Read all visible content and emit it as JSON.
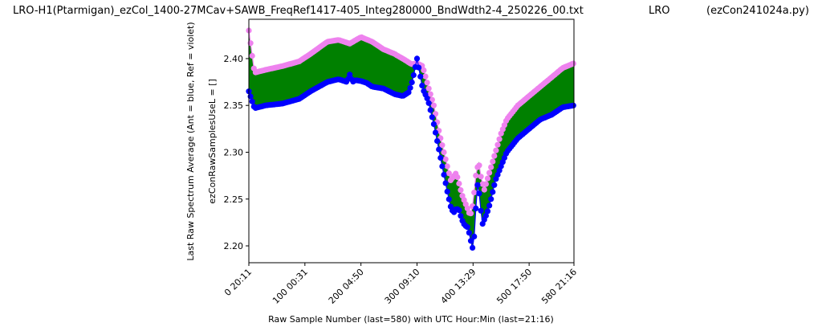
{
  "figure": {
    "title_left": "LRO-H1(Ptarmigan)_ezCol_1400-27MCav+SAWB_FreqRef1417-405_Integ280000_BndWdth2-4_250226_00.txt",
    "title_mid": "LRO",
    "title_right": "(ezCon241024a.py)"
  },
  "chart_data": {
    "type": "scatter",
    "xlabel": "Raw Sample Number (last=580) with UTC Hour:Min (last=21:16)",
    "ylabel_outer": "Last Raw Spectrum Average    (Ant = blue, Ref = violet)",
    "ylabel_inner": "ezConRawSamplesUseL = []",
    "xlim": [
      0,
      580
    ],
    "ylim": [
      2.182,
      2.442
    ],
    "x_ticks": [
      {
        "value": 0,
        "label": "0  20:11"
      },
      {
        "value": 100,
        "label": "100  00:31"
      },
      {
        "value": 200,
        "label": "200  04:50"
      },
      {
        "value": 300,
        "label": "300  09:10"
      },
      {
        "value": 400,
        "label": "400  13:29"
      },
      {
        "value": 500,
        "label": "500  17:50"
      },
      {
        "value": 580,
        "label": "580  21:16"
      }
    ],
    "y_ticks": [
      2.2,
      2.25,
      2.3,
      2.35,
      2.4
    ],
    "y_tick_labels": [
      "2.20",
      "2.25",
      "2.30",
      "2.35",
      "2.40"
    ],
    "grid": false,
    "colors": {
      "ant": "#0000ff",
      "ref": "#ee82ee",
      "fill": "#008000"
    },
    "series": [
      {
        "name": "Ant",
        "color": "#0000ff",
        "x": [
          0,
          10,
          30,
          60,
          90,
          110,
          140,
          160,
          175,
          180,
          185,
          190,
          200,
          210,
          220,
          240,
          260,
          275,
          285,
          290,
          295,
          300,
          310,
          320,
          330,
          340,
          350,
          355,
          360,
          365,
          370,
          375,
          380,
          385,
          390,
          395,
          398,
          400,
          402,
          405,
          408,
          412,
          416,
          420,
          425,
          430,
          440,
          450,
          460,
          480,
          500,
          520,
          540,
          560,
          580
        ],
        "y": [
          2.365,
          2.347,
          2.35,
          2.352,
          2.357,
          2.365,
          2.375,
          2.378,
          2.375,
          2.383,
          2.375,
          2.377,
          2.376,
          2.374,
          2.37,
          2.368,
          2.362,
          2.36,
          2.364,
          2.372,
          2.385,
          2.4,
          2.368,
          2.355,
          2.33,
          2.3,
          2.27,
          2.255,
          2.242,
          2.235,
          2.24,
          2.238,
          2.228,
          2.222,
          2.22,
          2.21,
          2.196,
          2.2,
          2.21,
          2.24,
          2.265,
          2.253,
          2.222,
          2.228,
          2.235,
          2.245,
          2.27,
          2.285,
          2.3,
          2.315,
          2.325,
          2.335,
          2.34,
          2.348,
          2.35
        ]
      },
      {
        "name": "Ref",
        "color": "#ee82ee",
        "x": [
          0,
          10,
          30,
          60,
          90,
          110,
          140,
          160,
          180,
          200,
          220,
          240,
          260,
          280,
          290,
          300,
          310,
          320,
          330,
          340,
          350,
          360,
          370,
          380,
          390,
          395,
          400,
          405,
          410,
          415,
          420,
          430,
          440,
          450,
          460,
          480,
          500,
          520,
          540,
          560,
          580
        ],
        "y": [
          2.43,
          2.385,
          2.388,
          2.392,
          2.397,
          2.405,
          2.418,
          2.42,
          2.416,
          2.423,
          2.418,
          2.41,
          2.405,
          2.398,
          2.394,
          2.395,
          2.392,
          2.37,
          2.35,
          2.32,
          2.295,
          2.27,
          2.278,
          2.255,
          2.24,
          2.232,
          2.245,
          2.275,
          2.29,
          2.27,
          2.26,
          2.28,
          2.3,
          2.32,
          2.335,
          2.35,
          2.36,
          2.37,
          2.38,
          2.39,
          2.395
        ]
      }
    ]
  }
}
